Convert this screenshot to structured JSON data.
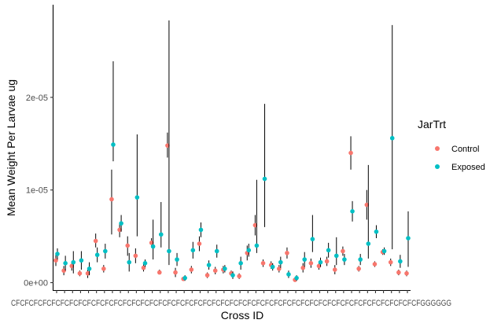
{
  "chart_data": {
    "type": "scatter",
    "xlabel": "Cross ID",
    "ylabel": "Mean Weight Per Larvae ug",
    "y_tick_labels": [
      "0e+00",
      "1e-05",
      "2e-05"
    ],
    "y_ticks": [
      0,
      1e-05,
      2e-05
    ],
    "ylim": [
      -8e-07,
      3e-05
    ],
    "x_tick_label_text": "CFCFCFCFCFCFCFCFCFCFCFCFCFCFCFCFCFCFCFCFCFCFCFCFCFCFCFCFCFCFCFCFCFCFCFCFCFCFCFCFCFCFCFCFCFCFGGGGGG",
    "legend": {
      "title": "JarTrt",
      "position": "right",
      "items": [
        {
          "label": "Control",
          "color": "#F8766D"
        },
        {
          "label": "Exposed",
          "color": "#00BFC4"
        }
      ]
    },
    "error_bars": true,
    "grid": false,
    "series": [
      {
        "name": "Control",
        "color": "#F8766D",
        "values": [
          2.4e-06,
          1.3e-06,
          1.8e-06,
          1e-06,
          1e-06,
          4.5e-06,
          1.5e-06,
          9e-06,
          5.7e-06,
          4e-06,
          2.9e-06,
          1.6e-06,
          4.3e-06,
          1.1e-06,
          1.48e-05,
          1.1e-06,
          4e-07,
          1.4e-06,
          4.2e-06,
          8e-07,
          1.3e-06,
          1.4e-06,
          1e-06,
          7e-07,
          3.2e-06,
          6.2e-06,
          2.1e-06,
          1.9e-06,
          1.5e-06,
          3.2e-06,
          3e-07,
          1.6e-06,
          2.1e-06,
          1.8e-06,
          2.3e-06,
          1.4e-06,
          3.4e-06,
          1.4e-05,
          1.5e-06,
          8.4e-06,
          2e-06,
          3.3e-06,
          2.2e-06,
          1.1e-06,
          1e-06
        ],
        "err_low": [
          1.8e-06,
          8e-07,
          1.3e-06,
          7e-07,
          5e-07,
          3.8e-06,
          1.1e-06,
          5.2e-06,
          4.9e-06,
          2.9e-06,
          2.1e-06,
          1.2e-06,
          3.8e-06,
          9e-07,
          1.35e-05,
          6e-07,
          2e-07,
          1e-06,
          3.4e-06,
          5e-07,
          9e-07,
          1e-06,
          7e-07,
          4e-07,
          2.4e-06,
          5.1e-06,
          1.7e-06,
          1.5e-06,
          1.1e-06,
          2.6e-06,
          1e-07,
          1.1e-06,
          1.6e-06,
          1.4e-06,
          1.8e-06,
          9e-07,
          2.9e-06,
          1.22e-05,
          1.2e-06,
          6.8e-06,
          1.7e-06,
          3e-06,
          1.8e-06,
          8e-07,
          7e-07
        ],
        "err_high": [
          3e-06,
          1.8e-06,
          2.2e-06,
          1.3e-06,
          1.4e-06,
          5.3e-06,
          1.9e-06,
          1.22e-05,
          6.5e-06,
          5e-06,
          3.7e-06,
          2e-06,
          4.8e-06,
          1.4e-06,
          1.62e-05,
          1.6e-06,
          6e-07,
          1.8e-06,
          5e-06,
          1.1e-06,
          1.7e-06,
          1.8e-06,
          1.3e-06,
          1e-06,
          4e-06,
          7.3e-06,
          2.5e-06,
          2.3e-06,
          1.9e-06,
          3.8e-06,
          5e-07,
          2.1e-06,
          2.6e-06,
          2.2e-06,
          2.8e-06,
          1.9e-06,
          3.9e-06,
          1.58e-05,
          1.8e-06,
          1e-05,
          2.3e-06,
          3.6e-06,
          2.6e-06,
          1.4e-06,
          1.3e-06
        ]
      },
      {
        "name": "Exposed",
        "color": "#00BFC4",
        "values": [
          3.1e-06,
          2.1e-06,
          2.2e-06,
          2.4e-06,
          1.5e-06,
          3e-06,
          3.4e-06,
          1.49e-05,
          6.4e-06,
          2.2e-06,
          9.2e-06,
          2.1e-06,
          3.9e-06,
          5.2e-06,
          3.4e-06,
          2.5e-06,
          5e-07,
          3.5e-06,
          5.7e-06,
          1.9e-06,
          3.4e-06,
          1.5e-06,
          8e-07,
          2.1e-06,
          3.5e-06,
          4e-06,
          1.12e-05,
          1.7e-06,
          2.2e-06,
          9e-07,
          5e-07,
          2.5e-06,
          4.7e-06,
          2.2e-06,
          3.5e-06,
          2.9e-06,
          2.5e-06,
          7.7e-06,
          2.5e-06,
          4.2e-06,
          5.5e-06,
          3.4e-06,
          1.56e-05,
          2.3e-06,
          4.8e-06
        ],
        "err_low": [
          2.5e-06,
          1.3e-06,
          1e-06,
          1.4e-06,
          8e-07,
          2.2e-06,
          2.6e-06,
          1.31e-05,
          5.5e-06,
          1.2e-06,
          5e-06,
          1.7e-06,
          2.5e-06,
          3.8e-06,
          1.9e-06,
          1.8e-06,
          2e-07,
          2.6e-06,
          4.9e-06,
          1.4e-06,
          2.7e-06,
          1.1e-06,
          4e-07,
          1.4e-06,
          2.8e-06,
          3.2e-06,
          6e-06,
          1.3e-06,
          1.6e-06,
          5e-07,
          2e-07,
          1.7e-06,
          3.3e-06,
          1.7e-06,
          2.7e-06,
          1.9e-06,
          1.9e-06,
          6.6e-06,
          1.9e-06,
          2.6e-06,
          4.8e-06,
          3e-06,
          3.6e-06,
          1.6e-06,
          1.7e-06
        ],
        "err_high": [
          3.7e-06,
          2.9e-06,
          3.4e-06,
          3.4e-06,
          2.2e-06,
          3.8e-06,
          4.2e-06,
          2.39e-05,
          7.3e-06,
          3.2e-06,
          1.6e-05,
          2.5e-06,
          6.8e-06,
          8.7e-06,
          2.83e-05,
          3.2e-06,
          8e-07,
          4.4e-06,
          6.5e-06,
          2.4e-06,
          4.1e-06,
          1.9e-06,
          1.2e-06,
          2.8e-06,
          4.2e-06,
          1.11e-05,
          1.93e-05,
          2.1e-06,
          2.8e-06,
          1.3e-06,
          8e-07,
          3.3e-06,
          7.3e-06,
          2.7e-06,
          4.3e-06,
          4.9e-06,
          3.1e-06,
          8.8e-06,
          3.1e-06,
          1.27e-05,
          6.2e-06,
          3.8e-06,
          2.78e-05,
          3e-06,
          7.7e-06
        ]
      }
    ]
  }
}
